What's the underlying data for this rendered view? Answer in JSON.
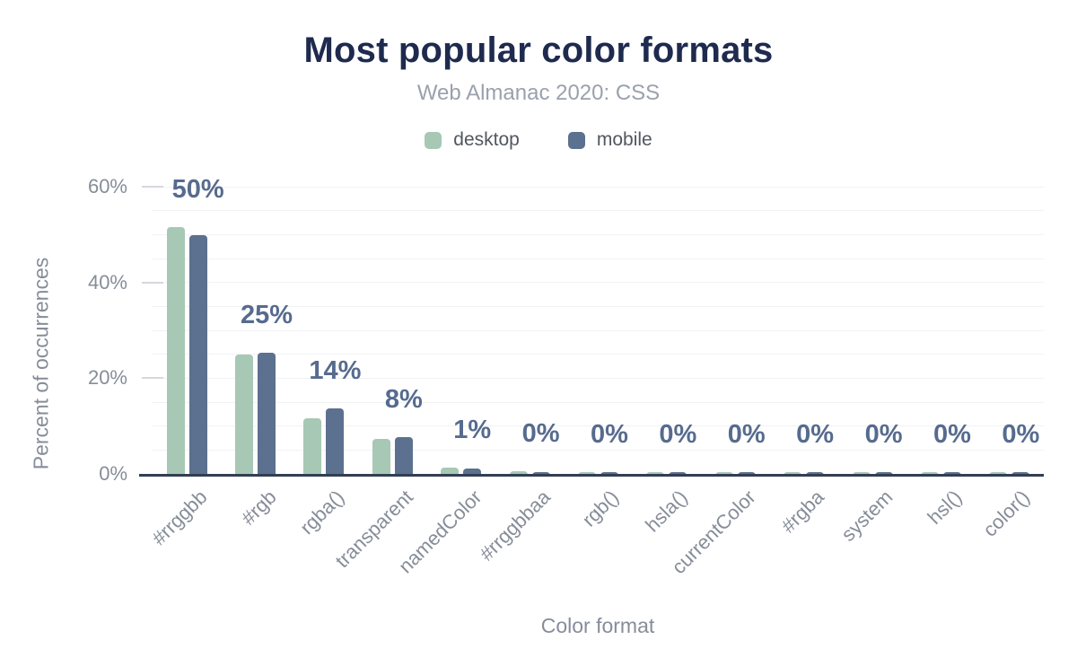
{
  "header": {
    "title": "Most popular color formats",
    "subtitle": "Web Almanac 2020: CSS"
  },
  "legend": {
    "items": [
      {
        "label": "desktop",
        "color": "#a7c8b4"
      },
      {
        "label": "mobile",
        "color": "#5c708f"
      }
    ]
  },
  "axes": {
    "x_title": "Color format",
    "y_title": "Percent of occurrences",
    "y_ticks": [
      {
        "value": 0,
        "label": "0%"
      },
      {
        "value": 20,
        "label": "20%"
      },
      {
        "value": 40,
        "label": "40%"
      },
      {
        "value": 60,
        "label": "60%"
      }
    ]
  },
  "chart_data": {
    "type": "bar",
    "title": "Most popular color formats",
    "subtitle": "Web Almanac 2020: CSS",
    "xlabel": "Color format",
    "ylabel": "Percent of occurrences",
    "ylim": [
      0,
      60
    ],
    "grid": {
      "horizontal": true,
      "interval": 5
    },
    "legend_position": "top",
    "categories": [
      "#rrggbb",
      "#rgb",
      "rgba()",
      "transparent",
      "namedColor",
      "#rrggbbaa",
      "rgb()",
      "hsla()",
      "currentColor",
      "#rgba",
      "system",
      "hsl()",
      "color()"
    ],
    "series": [
      {
        "name": "desktop",
        "color": "#a7c8b4",
        "values": [
          51.6,
          24.9,
          11.7,
          7.3,
          1.3,
          0.5,
          0.25,
          0.2,
          0.15,
          0.12,
          0.1,
          0.08,
          0.04
        ]
      },
      {
        "name": "mobile",
        "color": "#5c708f",
        "values": [
          49.9,
          25.4,
          13.6,
          7.6,
          1.2,
          0.2,
          0.25,
          0.2,
          0.15,
          0.12,
          0.1,
          0.08,
          0.04
        ]
      }
    ],
    "bar_labels": [
      "50%",
      "25%",
      "14%",
      "8%",
      "1%",
      "0%",
      "0%",
      "0%",
      "0%",
      "0%",
      "0%",
      "0%",
      "0%"
    ],
    "bar_label_color": "#566b8e"
  },
  "colors": {
    "background": "#ffffff",
    "title": "#1e2a4e",
    "subtitle": "#9aa1ad",
    "legend_text": "#51575f",
    "axis_text": "#868d99",
    "gridline": "#f1f2f4",
    "tick": "#d5d8dd",
    "axis_line": "#323e52",
    "bar_label": "#566b8e"
  }
}
